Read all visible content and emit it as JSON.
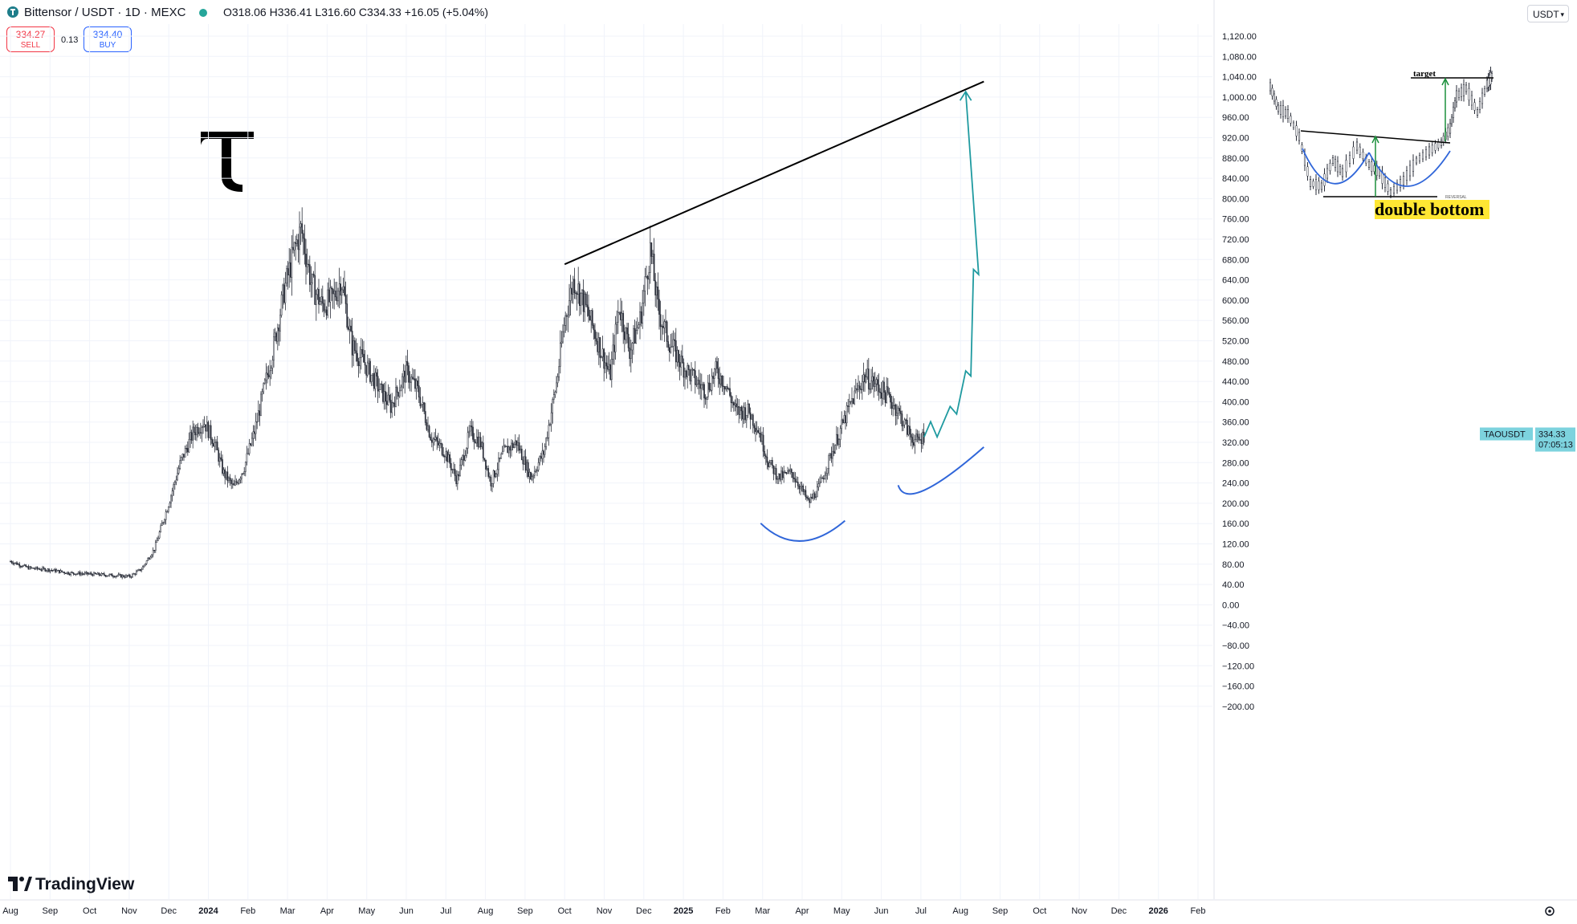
{
  "header": {
    "symbol_title": "Bittensor / USDT · 1D · MEXC",
    "ohlc": "O318.06 H336.41 L316.60 C334.33 +16.05 (+5.04%)",
    "sell_price": "334.27",
    "sell_label": "SELL",
    "spread": "0.13",
    "buy_price": "334.40",
    "buy_label": "BUY",
    "currency": "USDT"
  },
  "brand": "TradingView",
  "chart_data": {
    "type": "candlestick",
    "symbol": "TAOUSDT",
    "last_price_label": "334.33",
    "countdown_label": "07:05:13",
    "y_ticks": [
      "1,120.00",
      "1,080.00",
      "1,040.00",
      "1,000.00",
      "960.00",
      "920.00",
      "880.00",
      "840.00",
      "800.00",
      "760.00",
      "720.00",
      "680.00",
      "640.00",
      "600.00",
      "560.00",
      "520.00",
      "480.00",
      "440.00",
      "400.00",
      "360.00",
      "320.00",
      "280.00",
      "240.00",
      "200.00",
      "160.00",
      "120.00",
      "80.00",
      "40.00",
      "0.00",
      "−40.00",
      "−80.00",
      "−120.00",
      "−160.00",
      "−200.00"
    ],
    "x_ticks": [
      "Aug",
      "Sep",
      "Oct",
      "Nov",
      "Dec",
      "2024",
      "Feb",
      "Mar",
      "Apr",
      "May",
      "Jun",
      "Jul",
      "Aug",
      "Sep",
      "Oct",
      "Nov",
      "Dec",
      "2025",
      "Feb",
      "Mar",
      "Apr",
      "May",
      "Jun",
      "Jul",
      "Aug",
      "Sep",
      "Oct",
      "Nov",
      "Dec",
      "2026",
      "Feb"
    ],
    "ylim": [
      -200,
      1120
    ],
    "price_path": [
      [
        "2023-08-01",
        85
      ],
      [
        "2023-08-15",
        72
      ],
      [
        "2023-09-01",
        68
      ],
      [
        "2023-09-15",
        62
      ],
      [
        "2023-10-01",
        60
      ],
      [
        "2023-10-15",
        58
      ],
      [
        "2023-11-01",
        55
      ],
      [
        "2023-11-10",
        70
      ],
      [
        "2023-11-20",
        110
      ],
      [
        "2023-12-01",
        200
      ],
      [
        "2023-12-10",
        280
      ],
      [
        "2023-12-20",
        340
      ],
      [
        "2023-12-28",
        360
      ],
      [
        "2024-01-05",
        320
      ],
      [
        "2024-01-12",
        260
      ],
      [
        "2024-01-20",
        230
      ],
      [
        "2024-01-28",
        270
      ],
      [
        "2024-02-05",
        340
      ],
      [
        "2024-02-12",
        420
      ],
      [
        "2024-02-20",
        510
      ],
      [
        "2024-02-28",
        620
      ],
      [
        "2024-03-07",
        700
      ],
      [
        "2024-03-12",
        740
      ],
      [
        "2024-03-20",
        630
      ],
      [
        "2024-03-28",
        590
      ],
      [
        "2024-04-05",
        600
      ],
      [
        "2024-04-12",
        640
      ],
      [
        "2024-04-20",
        510
      ],
      [
        "2024-05-01",
        470
      ],
      [
        "2024-05-10",
        430
      ],
      [
        "2024-05-20",
        390
      ],
      [
        "2024-06-01",
        460
      ],
      [
        "2024-06-10",
        420
      ],
      [
        "2024-06-20",
        330
      ],
      [
        "2024-07-01",
        300
      ],
      [
        "2024-07-10",
        245
      ],
      [
        "2024-07-20",
        340
      ],
      [
        "2024-07-28",
        320
      ],
      [
        "2024-08-05",
        240
      ],
      [
        "2024-08-15",
        300
      ],
      [
        "2024-08-25",
        320
      ],
      [
        "2024-09-05",
        250
      ],
      [
        "2024-09-15",
        300
      ],
      [
        "2024-09-25",
        440
      ],
      [
        "2024-10-01",
        560
      ],
      [
        "2024-10-08",
        640
      ],
      [
        "2024-10-15",
        600
      ],
      [
        "2024-10-25",
        530
      ],
      [
        "2024-11-05",
        450
      ],
      [
        "2024-11-12",
        590
      ],
      [
        "2024-11-20",
        500
      ],
      [
        "2024-11-28",
        560
      ],
      [
        "2024-12-06",
        700
      ],
      [
        "2024-12-12",
        580
      ],
      [
        "2024-12-20",
        520
      ],
      [
        "2024-12-31",
        470
      ],
      [
        "2025-01-10",
        440
      ],
      [
        "2025-01-18",
        420
      ],
      [
        "2025-01-25",
        460
      ],
      [
        "2025-02-01",
        440
      ],
      [
        "2025-02-10",
        380
      ],
      [
        "2025-02-20",
        380
      ],
      [
        "2025-02-28",
        340
      ],
      [
        "2025-03-07",
        280
      ],
      [
        "2025-03-15",
        250
      ],
      [
        "2025-03-25",
        260
      ],
      [
        "2025-04-01",
        230
      ],
      [
        "2025-04-07",
        200
      ],
      [
        "2025-04-15",
        230
      ],
      [
        "2025-04-25",
        300
      ],
      [
        "2025-05-01",
        340
      ],
      [
        "2025-05-10",
        400
      ],
      [
        "2025-05-20",
        450
      ],
      [
        "2025-05-30",
        430
      ],
      [
        "2025-06-07",
        410
      ],
      [
        "2025-06-15",
        380
      ],
      [
        "2025-06-25",
        330
      ],
      [
        "2025-06-30",
        320
      ],
      [
        "2025-07-05",
        334
      ]
    ],
    "annotations": {
      "trendline": [
        [
          "2024-10-01",
          670
        ],
        [
          "2025-08-20",
          1030
        ]
      ],
      "projection": [
        [
          "2025-07-05",
          330
        ],
        [
          "2025-07-10",
          360
        ],
        [
          "2025-07-15",
          330
        ],
        [
          "2025-07-25",
          390
        ],
        [
          "2025-07-30",
          375
        ],
        [
          "2025-08-06",
          460
        ],
        [
          "2025-08-10",
          450
        ],
        [
          "2025-08-12",
          660
        ],
        [
          "2025-08-16",
          650
        ],
        [
          "2025-08-06",
          1010
        ]
      ],
      "arcs": [
        {
          "from": [
            "2025-03-01",
            160
          ],
          "mid": [
            "2025-04-01",
            125
          ],
          "to": [
            "2025-05-05",
            165
          ]
        },
        {
          "from": [
            "2025-06-15",
            235
          ],
          "mid": [
            "2025-07-05",
            225
          ],
          "to": [
            "2025-08-20",
            310
          ]
        }
      ],
      "inset_labels": {
        "target": "target",
        "pattern": "double bottom",
        "reversal": "REVERSAL"
      }
    }
  },
  "colors": {
    "candle": "#2a2e39",
    "trendline": "#000000",
    "projection": "#1f9aa0",
    "arc": "#3066d9",
    "price_label_bg": "#7dd3de",
    "highlight": "#ffe733",
    "sell": "#f23645",
    "buy": "#2962ff",
    "live_dot": "#26a69a"
  },
  "icons": [
    "tv-logo-icon",
    "chevron-down-icon",
    "settings-icon",
    "bittensor-logo-icon"
  ]
}
